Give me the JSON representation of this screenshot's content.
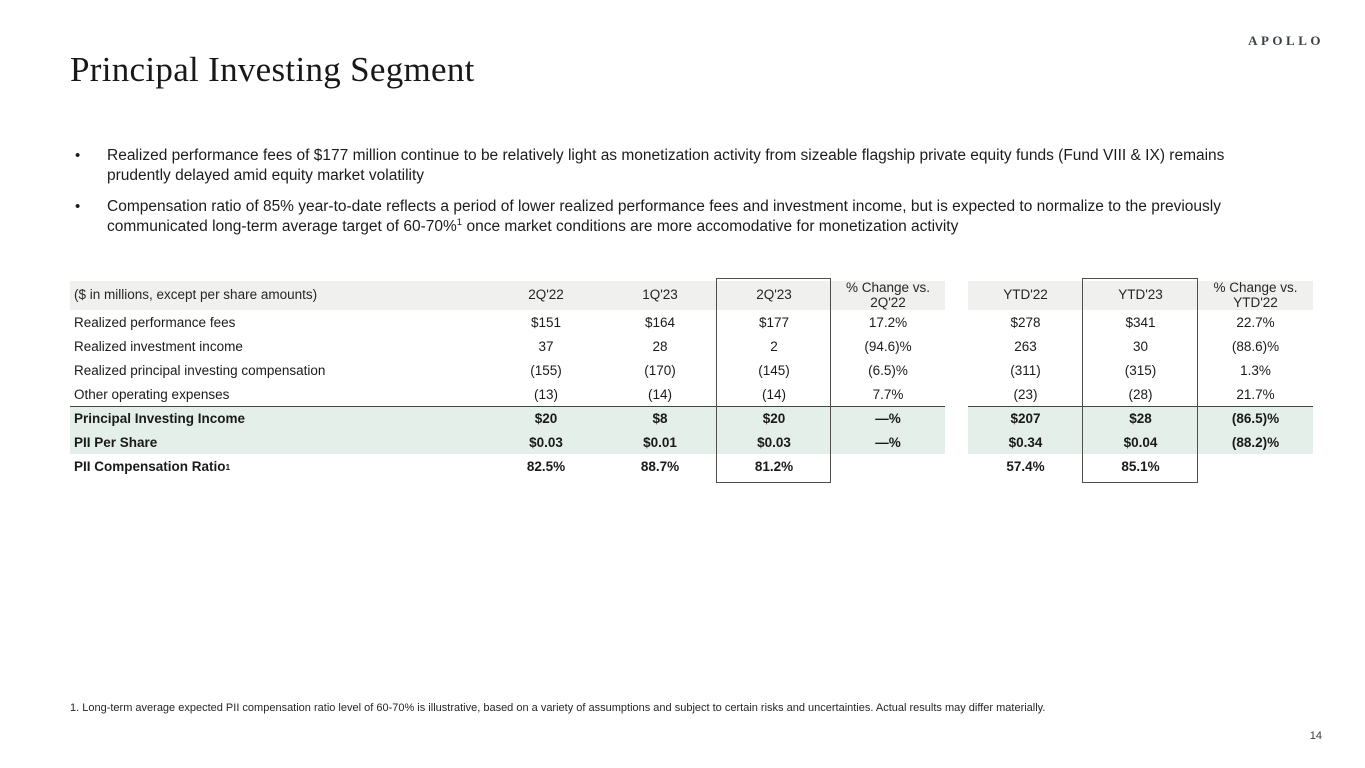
{
  "logo": "APOLLO",
  "title": "Principal Investing Segment",
  "bullets": [
    {
      "pre": "Realized performance fees of $177 million continue to be relatively light as monetization activity from sizeable flagship private equity funds (Fund VIII & IX) remains prudently delayed amid equity market volatility",
      "sup": "",
      "post": ""
    },
    {
      "pre": "Compensation ratio of 85% year-to-date reflects a period of lower realized performance fees and investment income, but is expected to normalize to the previously communicated long-term average target of 60-70%",
      "sup": "1",
      "post": " once market conditions are more accomodative for monetization activity"
    }
  ],
  "table": {
    "unit_label": "($ in millions, except per share amounts)",
    "columns_left": [
      "2Q'22",
      "1Q'23",
      "2Q'23",
      "% Change vs. 2Q'22"
    ],
    "columns_right": [
      "YTD'22",
      "YTD'23",
      "% Change vs. YTD'22"
    ],
    "rows": [
      {
        "label": "Realized performance fees",
        "label_sup": "",
        "style": "data",
        "values": [
          "$151",
          "$164",
          "$177",
          "17.2%",
          "$278",
          "$341",
          "22.7%"
        ]
      },
      {
        "label": "Realized investment income",
        "label_sup": "",
        "style": "data",
        "values": [
          "37",
          "28",
          "2",
          "(94.6)%",
          "263",
          "30",
          "(88.6)%"
        ]
      },
      {
        "label": "Realized principal investing compensation",
        "label_sup": "",
        "style": "data",
        "values": [
          "(155)",
          "(170)",
          "(145)",
          "(6.5)%",
          "(311)",
          "(315)",
          "1.3%"
        ]
      },
      {
        "label": "Other operating expenses",
        "label_sup": "",
        "style": "data",
        "values": [
          "(13)",
          "(14)",
          "(14)",
          "7.7%",
          "(23)",
          "(28)",
          "21.7%"
        ]
      },
      {
        "label": "Principal Investing Income",
        "label_sup": "",
        "style": "total",
        "separator_above": true,
        "values": [
          "$20",
          "$8",
          "$20",
          "—%",
          "$207",
          "$28",
          "(86.5)%"
        ]
      },
      {
        "label": "PII Per Share",
        "label_sup": "",
        "style": "total",
        "values": [
          "$0.03",
          "$0.01",
          "$0.03",
          "—%",
          "$0.34",
          "$0.04",
          "(88.2)%"
        ]
      },
      {
        "label": "PII Compensation Ratio",
        "label_sup": "1",
        "style": "ratio",
        "values": [
          "82.5%",
          "88.7%",
          "81.2%",
          "",
          "57.4%",
          "85.1%",
          ""
        ]
      }
    ]
  },
  "footnote": "1. Long-term average expected PII compensation ratio level of 60-70% is illustrative, based on a variety of assumptions and subject to certain risks and uncertainties. Actual results may differ materially.",
  "page_number": "14",
  "colors": {
    "header_bg": "#f0f0ee",
    "highlight_row_bg": "#e4efea",
    "separator_line": "#454545",
    "box_border": "#4f4f4f"
  }
}
